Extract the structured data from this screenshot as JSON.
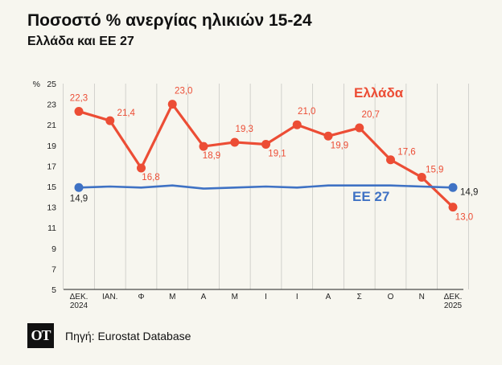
{
  "header": {
    "title": "Ποσοστό % ανεργίας ηλικιών 15-24",
    "subtitle": "Ελλάδα και ΕΕ 27"
  },
  "footer": {
    "logo_text": "ΟΤ",
    "source": "Πηγή: Eurostat Database"
  },
  "chart_data": {
    "type": "line",
    "title": "Ποσοστό % ανεργίας ηλικιών 15-24",
    "subtitle": "Ελλάδα και ΕΕ 27",
    "y_unit_label": "%",
    "ylim": [
      5,
      25
    ],
    "y_ticks": [
      5,
      7,
      9,
      11,
      13,
      15,
      17,
      19,
      21,
      23,
      25
    ],
    "grid": "vertical",
    "x_tick_labels": [
      [
        "ΔΕΚ.",
        "2024"
      ],
      [
        "ΙΑΝ."
      ],
      [
        "Φ"
      ],
      [
        "Μ"
      ],
      [
        "Α"
      ],
      [
        "Μ"
      ],
      [
        "Ι"
      ],
      [
        "Ι"
      ],
      [
        "Α"
      ],
      [
        "Σ"
      ],
      [
        "Ο"
      ],
      [
        "Ν"
      ],
      [
        "ΔΕΚ.",
        "2025"
      ]
    ],
    "series": [
      {
        "name": "Ελλάδα",
        "color": "#ec4d35",
        "values": [
          22.3,
          21.4,
          16.8,
          23.0,
          18.9,
          19.3,
          19.1,
          21.0,
          19.9,
          20.7,
          17.6,
          15.9,
          13.0
        ],
        "labels": [
          "22,3",
          "21,4",
          "16,8",
          "23,0",
          "18,9",
          "19,3",
          "19,1",
          "21,0",
          "19,9",
          "20,7",
          "17,6",
          "15,9",
          "13,0"
        ],
        "label_position": "above-right"
      },
      {
        "name": "ΕΕ 27",
        "color": "#3f72c4",
        "values": [
          14.9,
          15.0,
          14.9,
          15.1,
          14.8,
          14.9,
          15.0,
          14.9,
          15.1,
          15.1,
          15.1,
          15.0,
          14.9
        ],
        "labels": [
          "14,9",
          "",
          "",
          "",
          "",
          "",
          "",
          "",
          "",
          "",
          "",
          "",
          "14,9"
        ],
        "label_position": "below-left / right"
      }
    ]
  }
}
